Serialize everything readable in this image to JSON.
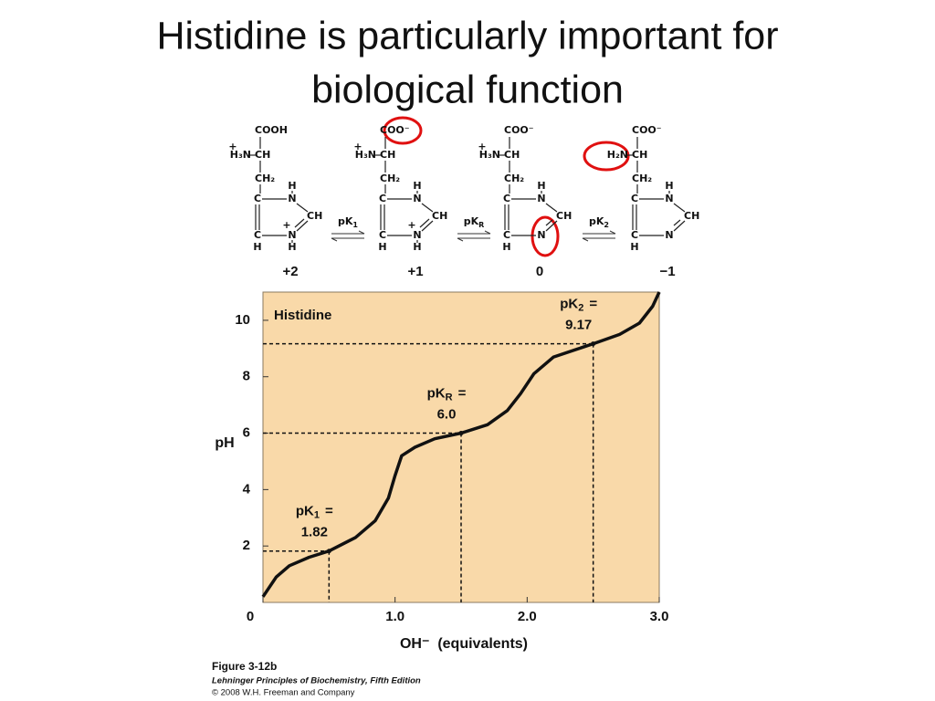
{
  "title_lines": [
    "Histidine is particularly important for",
    "biological function"
  ],
  "structures": [
    {
      "atoms": {
        "carboxyl": "COOH",
        "amino": "H₃N",
        "amino_charge": "+",
        "alpha": "CH",
        "beta": "CH₂",
        "c4": "C",
        "n3": "N",
        "n3_h": "H",
        "c2": "CH",
        "c5": "C",
        "c5_h": "H",
        "n1": "N",
        "n1_h": "H",
        "n1_charge": "+"
      },
      "net_charge": "+2"
    },
    {
      "atoms": {
        "carboxyl": "COO⁻",
        "amino": "H₃N",
        "amino_charge": "+",
        "alpha": "CH",
        "beta": "CH₂",
        "c4": "C",
        "n3": "N",
        "n3_h": "H",
        "c2": "CH",
        "c5": "C",
        "c5_h": "H",
        "n1": "N",
        "n1_h": "H",
        "n1_charge": "+"
      },
      "net_charge": "+1"
    },
    {
      "atoms": {
        "carboxyl": "COO⁻",
        "amino": "H₃N",
        "amino_charge": "+",
        "alpha": "CH",
        "beta": "CH₂",
        "c4": "C",
        "n3": "N",
        "n3_h": "H",
        "c2": "CH",
        "c5": "C",
        "c5_h": "H",
        "n1": "N"
      },
      "net_charge": "0"
    },
    {
      "atoms": {
        "carboxyl": "COO⁻",
        "amino": "H₂N",
        "alpha": "CH",
        "beta": "CH₂",
        "c4": "C",
        "n3": "N",
        "n3_h": "H",
        "c2": "CH",
        "c5": "C",
        "c5_h": "H",
        "n1": "N"
      },
      "net_charge": "−1"
    }
  ],
  "equilibria": [
    {
      "label": "pK",
      "subscript": "1"
    },
    {
      "label": "pK",
      "subscript": "R"
    },
    {
      "label": "pK",
      "subscript": "2"
    }
  ],
  "chart_data": {
    "type": "line",
    "title": "Histidine",
    "x_label": "OH⁻  (equivalents)",
    "y_label": "pH",
    "x": [
      0,
      0.1,
      0.2,
      0.35,
      0.5,
      0.7,
      0.85,
      0.95,
      1.0,
      1.05,
      1.15,
      1.3,
      1.5,
      1.7,
      1.85,
      1.95,
      2.05,
      2.2,
      2.5,
      2.7,
      2.85,
      2.95,
      3.0
    ],
    "series": [
      {
        "name": "Histidine",
        "color": "#111111",
        "values": [
          0.2,
          0.9,
          1.3,
          1.6,
          1.82,
          2.3,
          2.9,
          3.7,
          4.5,
          5.2,
          5.5,
          5.8,
          6.0,
          6.3,
          6.8,
          7.4,
          8.1,
          8.7,
          9.17,
          9.5,
          9.9,
          10.5,
          11.0
        ]
      }
    ],
    "xlim": [
      0,
      3
    ],
    "ylim": [
      0,
      11
    ],
    "xticks": [
      0,
      {
        "value": 1,
        "label": "1.0"
      },
      {
        "value": 2,
        "label": "2.0"
      },
      {
        "value": 3,
        "label": "3.0"
      }
    ],
    "yticks": [
      2,
      4,
      6,
      8,
      10
    ],
    "background": "#f9d9a9",
    "annotations": [
      {
        "x": 0.5,
        "y": 1.82,
        "label": "pK",
        "subscript": "1",
        "suffix": "=",
        "value_label": "1.82"
      },
      {
        "x": 1.5,
        "y": 6.0,
        "label": "pK",
        "subscript": "R",
        "suffix": "=",
        "value_label": "6.0"
      },
      {
        "x": 2.5,
        "y": 9.17,
        "label": "pK",
        "subscript": "2",
        "suffix": "=",
        "value_label": "9.17"
      }
    ]
  },
  "caption": {
    "figure": "Figure 3-12b",
    "book": "Lehninger Principles of Biochemistry, Fifth Edition",
    "copyright": "© 2008 W.H. Freeman and Company"
  }
}
